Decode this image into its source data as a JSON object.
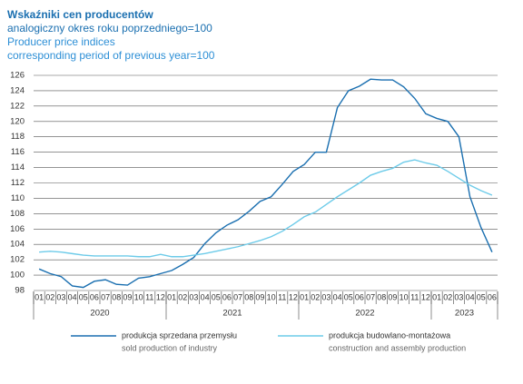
{
  "chart_data": {
    "type": "line",
    "title": "Wskaźniki cen producentów",
    "subtitle": "analogiczny okres roku poprzedniego=100",
    "title_translation": "Producer price indices",
    "subtitle_translation": "corresponding period of previous year=100",
    "categories": [
      "01",
      "02",
      "03",
      "04",
      "05",
      "06",
      "07",
      "08",
      "09",
      "10",
      "11",
      "12",
      "01",
      "02",
      "03",
      "04",
      "05",
      "06",
      "07",
      "08",
      "09",
      "10",
      "11",
      "12",
      "01",
      "02",
      "03",
      "04",
      "05",
      "06",
      "07",
      "08",
      "09",
      "10",
      "11",
      "12",
      "01",
      "02",
      "03",
      "04",
      "05",
      "06"
    ],
    "years": [
      "2020",
      "2021",
      "2022",
      "2023"
    ],
    "ylim": [
      98,
      126
    ],
    "yticks": [
      98,
      100,
      102,
      104,
      106,
      108,
      110,
      112,
      114,
      116,
      118,
      120,
      122,
      124,
      126
    ],
    "grid": true,
    "series": [
      {
        "name": "produkcja sprzedana przemysłu",
        "name_translation": "sold production of industry",
        "color": "#1a6fb0",
        "values": [
          100.8,
          100.2,
          99.8,
          98.6,
          98.4,
          99.2,
          99.4,
          98.8,
          98.7,
          99.6,
          99.8,
          100.2,
          100.6,
          101.4,
          102.3,
          104.1,
          105.5,
          106.5,
          107.2,
          108.3,
          109.6,
          110.2,
          111.8,
          113.5,
          114.4,
          116.0,
          116.0,
          121.8,
          124.0,
          124.6,
          125.5,
          125.4,
          125.4,
          124.5,
          123.0,
          121.0,
          120.4,
          120.0,
          118.0,
          110.2,
          106.2,
          103.0
        ]
      },
      {
        "name": "produkcja budowlano-montażowa",
        "name_translation": "construction and assembly production",
        "color": "#6dcbe9",
        "values": [
          103.0,
          103.1,
          103.0,
          102.8,
          102.6,
          102.5,
          102.5,
          102.5,
          102.5,
          102.4,
          102.4,
          102.7,
          102.4,
          102.4,
          102.6,
          102.8,
          103.1,
          103.4,
          103.7,
          104.1,
          104.5,
          105.0,
          105.7,
          106.6,
          107.6,
          108.2,
          109.2,
          110.2,
          111.1,
          112.0,
          113.0,
          113.5,
          113.9,
          114.7,
          115.0,
          114.6,
          114.3,
          113.5,
          112.6,
          111.7,
          111.0,
          110.4
        ]
      }
    ]
  }
}
